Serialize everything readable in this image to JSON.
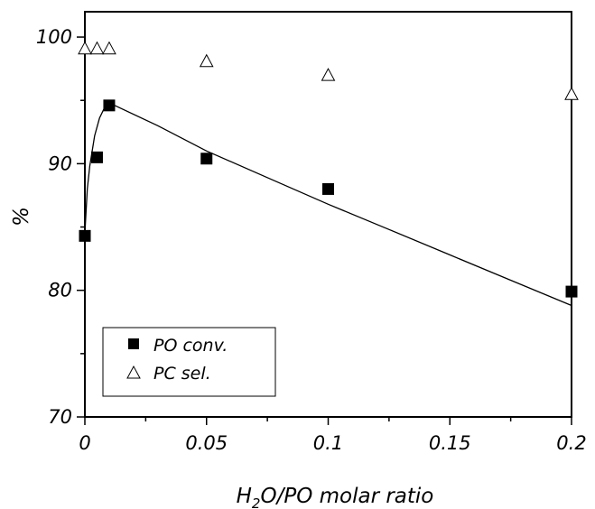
{
  "chart_data": {
    "type": "scatter",
    "xlabel_main": "H",
    "xlabel_sub": "2",
    "xlabel_rest": "O/PO molar ratio",
    "ylabel": "%",
    "xlim": [
      0,
      0.2
    ],
    "ylim": [
      70,
      102
    ],
    "x_ticks": [
      0,
      0.05,
      0.1,
      0.15,
      0.2
    ],
    "x_tick_labels": [
      "0",
      "0.05",
      "0.1",
      "0.15",
      "0.2"
    ],
    "y_ticks": [
      70,
      80,
      90,
      100
    ],
    "y_tick_labels": [
      "70",
      "80",
      "90",
      "100"
    ],
    "grid": false,
    "legend_position": "bottom-left",
    "series": [
      {
        "name": "PO conv.",
        "marker": "filled-square",
        "x": [
          0,
          0.005,
          0.01,
          0.05,
          0.1,
          0.2
        ],
        "y": [
          84.3,
          90.5,
          94.6,
          90.4,
          88.0,
          79.9
        ]
      },
      {
        "name": "PC sel.",
        "marker": "open-triangle",
        "x": [
          0,
          0.005,
          0.01,
          0.05,
          0.1,
          0.2
        ],
        "y": [
          99.1,
          99.1,
          99.1,
          98.1,
          97.0,
          95.5
        ]
      }
    ],
    "fit_line": {
      "x": [
        0,
        0.001,
        0.002,
        0.004,
        0.006,
        0.008,
        0.01,
        0.03,
        0.05,
        0.075,
        0.1,
        0.125,
        0.15,
        0.175,
        0.2
      ],
      "y": [
        84.5,
        88.0,
        89.8,
        92.2,
        93.6,
        94.4,
        94.8,
        93.0,
        91.0,
        88.9,
        86.8,
        84.8,
        82.8,
        80.8,
        78.8
      ]
    }
  }
}
